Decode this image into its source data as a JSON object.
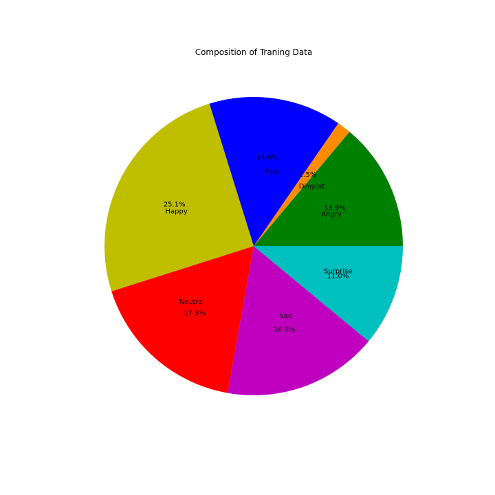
{
  "chart_data": {
    "type": "pie",
    "title": "Composition of Traning Data",
    "start_angle_deg": 0,
    "direction": "counterclockwise",
    "slices": [
      {
        "label": "Angry",
        "pct_label": "13.9%",
        "value": 13.9,
        "color": "#008000"
      },
      {
        "label": "Disgust",
        "pct_label": "1.5%",
        "value": 1.5,
        "color": "#ff8c00"
      },
      {
        "label": "Fear",
        "pct_label": "14.4%",
        "value": 14.4,
        "color": "#0000ff"
      },
      {
        "label": "Happy",
        "pct_label": "25.1%",
        "value": 25.1,
        "color": "#bfbf00"
      },
      {
        "label": "Neutral",
        "pct_label": "17.3%",
        "value": 17.3,
        "color": "#ff0000"
      },
      {
        "label": "Sad",
        "pct_label": "16.8%",
        "value": 16.8,
        "color": "#bf00bf"
      },
      {
        "label": "Surprise",
        "pct_label": "11.0%",
        "value": 11.0,
        "color": "#00bfbf"
      }
    ]
  }
}
